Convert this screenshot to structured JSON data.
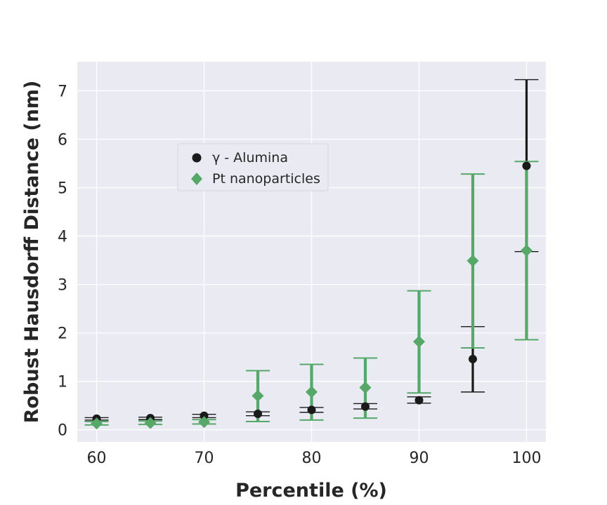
{
  "chart_data": {
    "type": "scatter",
    "xlabel": "Percentile (%)",
    "ylabel": "Robust Hausdorff Distance (nm)",
    "xlim": [
      58.2,
      101.8
    ],
    "ylim": [
      -0.25,
      7.6
    ],
    "xticks": [
      60,
      70,
      80,
      90,
      100
    ],
    "yticks": [
      0,
      1,
      2,
      3,
      4,
      5,
      6,
      7
    ],
    "grid": true,
    "legend_position": "upper-left",
    "series": [
      {
        "name": "γ - Alumina",
        "color": "#1a1a1a",
        "marker": "circle",
        "points": [
          {
            "x": 60,
            "y": 0.23,
            "low": 0.2,
            "high": 0.25
          },
          {
            "x": 65,
            "y": 0.24,
            "low": 0.21,
            "high": 0.26
          },
          {
            "x": 70,
            "y": 0.29,
            "low": 0.25,
            "high": 0.32
          },
          {
            "x": 75,
            "y": 0.33,
            "low": 0.29,
            "high": 0.37
          },
          {
            "x": 80,
            "y": 0.41,
            "low": 0.36,
            "high": 0.46
          },
          {
            "x": 85,
            "y": 0.48,
            "low": 0.43,
            "high": 0.54
          },
          {
            "x": 90,
            "y": 0.61,
            "low": 0.55,
            "high": 0.68
          },
          {
            "x": 95,
            "y": 1.46,
            "low": 0.78,
            "high": 2.13
          },
          {
            "x": 100,
            "y": 5.45,
            "low": 3.68,
            "high": 7.23
          }
        ]
      },
      {
        "name": "Pt nanoparticles",
        "color": "#55a868",
        "marker": "diamond",
        "points": [
          {
            "x": 60,
            "y": 0.13,
            "low": 0.1,
            "high": 0.17
          },
          {
            "x": 65,
            "y": 0.14,
            "low": 0.11,
            "high": 0.18
          },
          {
            "x": 70,
            "y": 0.16,
            "low": 0.12,
            "high": 0.21
          },
          {
            "x": 75,
            "y": 0.7,
            "low": 0.17,
            "high": 1.22
          },
          {
            "x": 80,
            "y": 0.78,
            "low": 0.2,
            "high": 1.35
          },
          {
            "x": 85,
            "y": 0.87,
            "low": 0.24,
            "high": 1.48
          },
          {
            "x": 90,
            "y": 1.82,
            "low": 0.76,
            "high": 2.87
          },
          {
            "x": 95,
            "y": 3.49,
            "low": 1.69,
            "high": 5.28
          },
          {
            "x": 100,
            "y": 3.7,
            "low": 1.86,
            "high": 5.54
          }
        ]
      }
    ]
  }
}
